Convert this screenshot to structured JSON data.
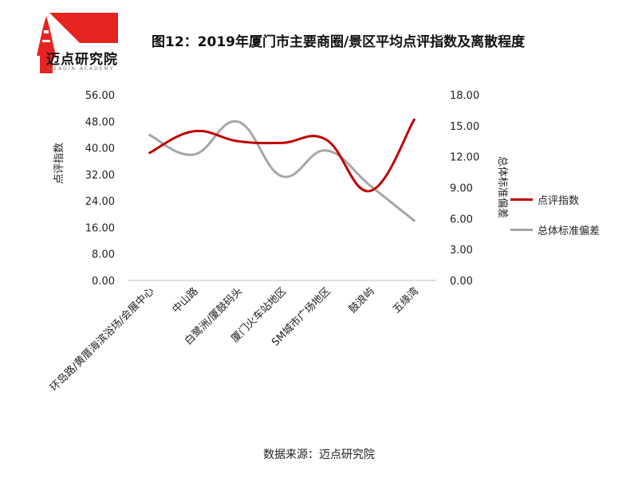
{
  "header": {
    "logo_text": "迈点研究院",
    "logo_subtext": "MEADIN ACADEMY",
    "title": "图12：2019年厦门市主要商圈/景区平均点评指数及离散程度"
  },
  "footer": {
    "source": "数据来源：迈点研究院"
  },
  "colors": {
    "series1": "#c00000",
    "series2": "#a6a6a6",
    "axis": "#bfbfbf",
    "logo": "#e52421"
  },
  "chart_data": {
    "type": "line",
    "title": "图12：2019年厦门市主要商圈/景区平均点评指数及离散程度",
    "categories": [
      "环岛路/黄厝海滨浴场/会展中心",
      "中山路",
      "白鹭洲/厦鼓码头",
      "厦门火车站地区",
      "SM城市广场地区",
      "鼓浪屿",
      "五缘湾"
    ],
    "ylabel": "点评指数",
    "y2label": "总体标准偏差",
    "ylim": [
      0,
      56
    ],
    "y2lim": [
      0,
      18
    ],
    "yticks": [
      "0.00",
      "8.00",
      "16.00",
      "24.00",
      "32.00",
      "40.00",
      "48.00",
      "56.00"
    ],
    "y2ticks": [
      "0.00",
      "3.00",
      "6.00",
      "9.00",
      "12.00",
      "15.00",
      "18.00"
    ],
    "series": [
      {
        "name": "点评指数",
        "axis": "left",
        "values": [
          38.5,
          45,
          42,
          41.5,
          42.5,
          27,
          48.5
        ]
      },
      {
        "name": "总体标准偏差",
        "axis": "right",
        "values": [
          14.1,
          12.2,
          15.4,
          10.1,
          12.6,
          9.2,
          5.8
        ]
      }
    ],
    "legend": "right",
    "grid": false,
    "smooth": true
  }
}
